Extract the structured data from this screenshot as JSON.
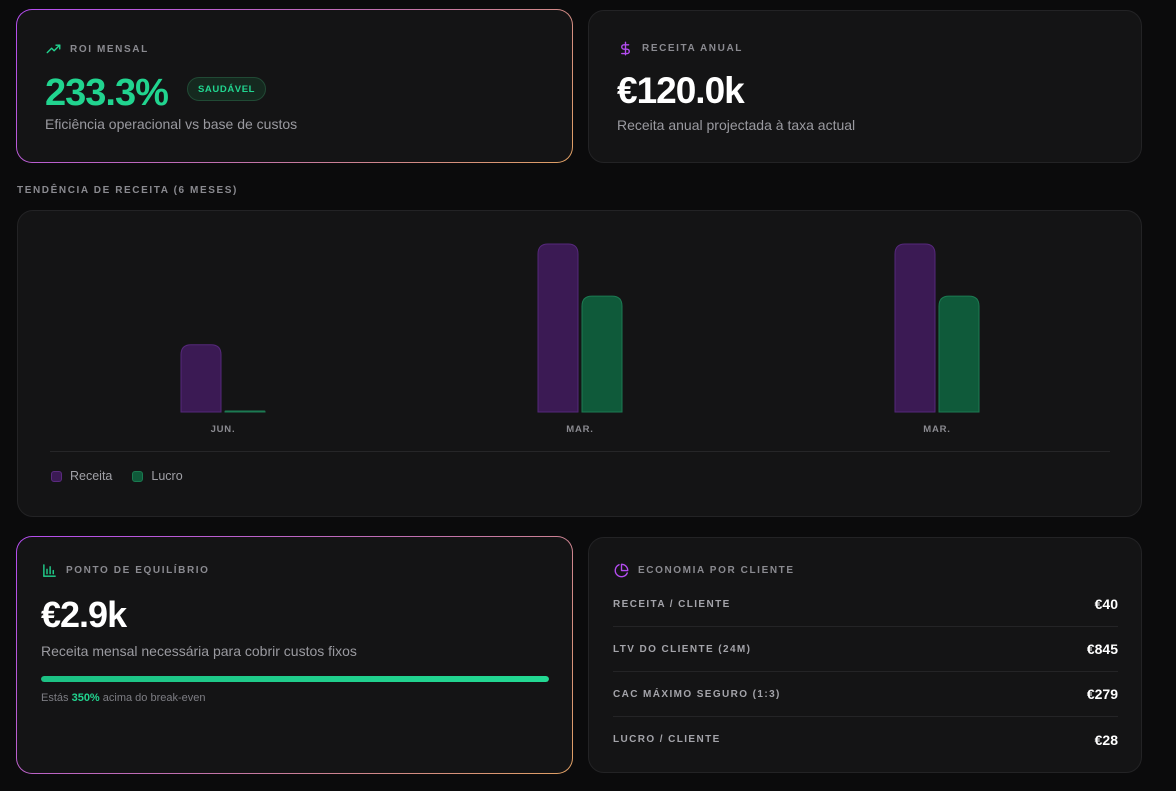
{
  "roi": {
    "label": "ROI MENSAL",
    "icon": "trending-up-icon",
    "value": "233.3%",
    "badge": "SAUDÁVEL",
    "description": "Eficiência operacional vs base de custos"
  },
  "annual": {
    "label": "RECEITA ANUAL",
    "icon": "dollar-icon",
    "value": "€120.0k",
    "description": "Receita anual projectada à taxa actual"
  },
  "trend": {
    "title": "TENDÊNCIA DE RECEITA (6 MESES)",
    "legend": {
      "revenue": "Receita",
      "profit": "Lucro"
    }
  },
  "chart_data": {
    "type": "bar",
    "categories": [
      "JUN.",
      "MAR.",
      "MAR."
    ],
    "series": [
      {
        "name": "Receita",
        "values": [
          40,
          100,
          100
        ]
      },
      {
        "name": "Lucro",
        "values": [
          0.5,
          69,
          69
        ]
      }
    ],
    "ylim": [
      0,
      100
    ],
    "grid": false,
    "legend_position": "bottom-left"
  },
  "breakeven": {
    "label": "PONTO DE EQUILÍBRIO",
    "icon": "bar-chart-icon",
    "value": "€2.9k",
    "description": "Receita mensal necessária para cobrir custos fixos",
    "progress": 1.0,
    "note_prefix": "Estás ",
    "note_value": "350%",
    "note_suffix": " acima do break-even"
  },
  "economy": {
    "label": "ECONOMIA POR CLIENTE",
    "icon": "pie-chart-icon",
    "rows": [
      {
        "label": "RECEITA / CLIENTE",
        "value": "€40"
      },
      {
        "label": "LTV DO CLIENTE (24M)",
        "value": "€845"
      },
      {
        "label": "CAC MÁXIMO SEGURO (1:3)",
        "value": "€279"
      },
      {
        "label": "LUCRO / CLIENTE",
        "value": "€28"
      }
    ]
  },
  "colors": {
    "accent_green": "#21d48f",
    "accent_purple": "#b44cf0",
    "revenue_bar": "#3b1a54",
    "profit_bar": "#0f5a3a"
  }
}
